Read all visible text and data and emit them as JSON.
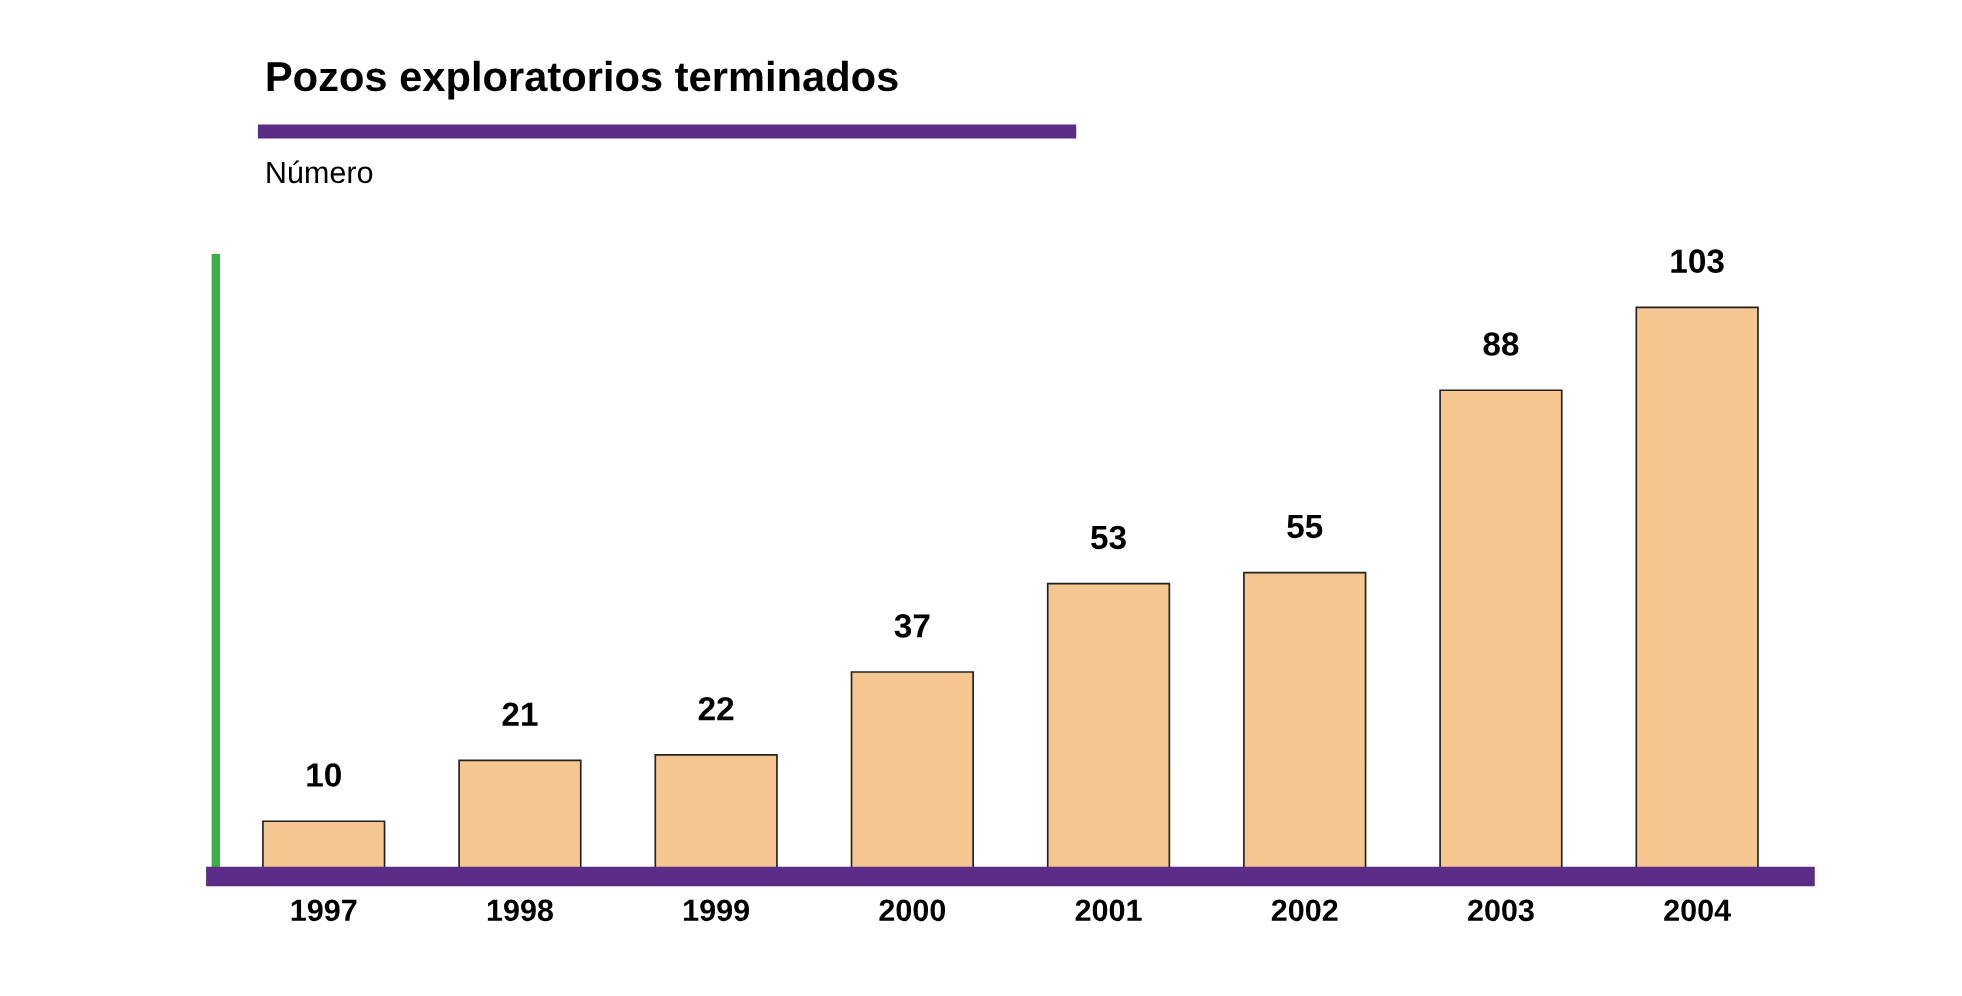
{
  "chart_data": {
    "type": "bar",
    "title": "Pozos exploratorios terminados",
    "ylabel": "Número",
    "categories": [
      "1997",
      "1998",
      "1999",
      "2000",
      "2001",
      "2002",
      "2003",
      "2004"
    ],
    "values": [
      10,
      21,
      22,
      37,
      53,
      55,
      88,
      103
    ],
    "color": "#f5c690",
    "data_labels": true,
    "tick_labels": "x",
    "grid": false,
    "legend": false
  }
}
